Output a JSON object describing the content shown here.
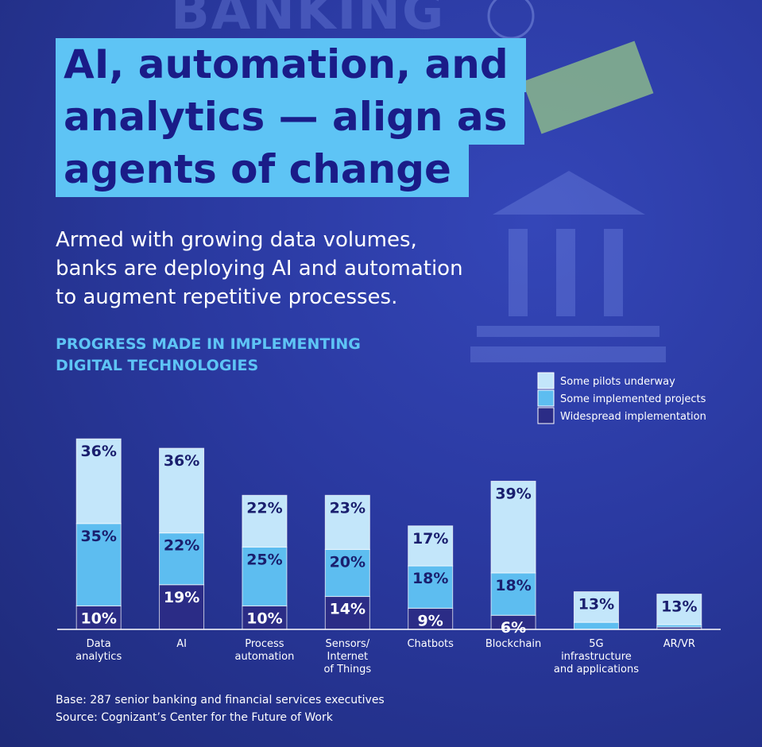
{
  "background_text": "BANKING",
  "title": "AI, automation, and\nanalytics — align as\nagents of change",
  "subtitle": "Armed with growing data volumes,\nbanks are deploying AI and automation\nto augment repetitive processes.",
  "chart_data": {
    "type": "stacked_bar",
    "title": "PROGRESS MADE IN IMPLEMENTING\nDIGITAL TECHNOLOGIES",
    "categories": [
      "Data\nanalytics",
      "AI",
      "Process\nautomation",
      "Sensors/\nInternet\nof Things",
      "Chatbots",
      "Blockchain",
      "5G\ninfrastructure\nand applications",
      "AR/VR"
    ],
    "series": [
      {
        "name": "Some pilots underway",
        "color": "#c3e6fa",
        "text_color": "#1a1f6e",
        "values": [
          36,
          36,
          22,
          23,
          17,
          39,
          13,
          13
        ],
        "value_labels": [
          "36%",
          "36%",
          "22%",
          "23%",
          "17%",
          "39%",
          "13%",
          "13%"
        ]
      },
      {
        "name": "Some implemented projects",
        "color": "#5dbdf0",
        "text_color": "#1a1f6e",
        "values": [
          35,
          22,
          25,
          20,
          18,
          18,
          3,
          1
        ],
        "value_labels": [
          "35%",
          "22%",
          "25%",
          "20%",
          "18%",
          "18%",
          null,
          null
        ]
      },
      {
        "name": "Widespread implementation",
        "color": "#2b2c86",
        "text_color": "#ffffff",
        "values": [
          10,
          19,
          10,
          14,
          9,
          6,
          0,
          1
        ],
        "value_labels": [
          "10%",
          "19%",
          "10%",
          "14%",
          "9%",
          "6%",
          null,
          null
        ]
      }
    ],
    "legend": "top-right"
  },
  "notes": [
    "Base: 287 senior banking and financial services executives",
    "Source: Cognizant’s Center for the Future of Work"
  ]
}
